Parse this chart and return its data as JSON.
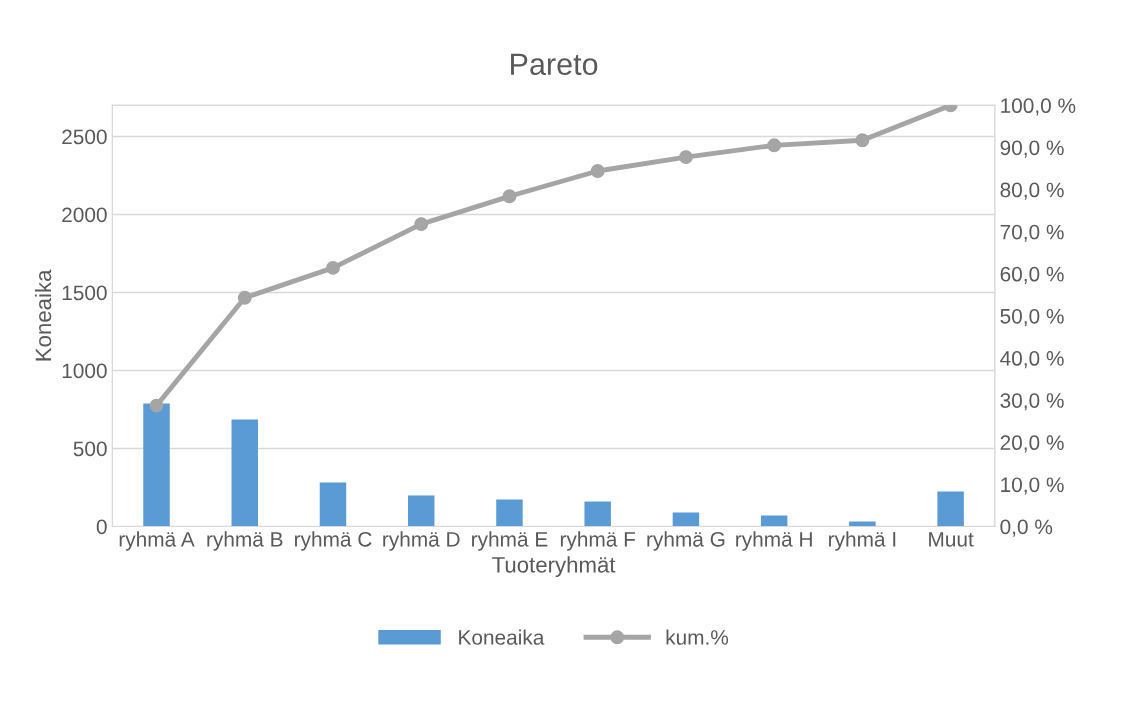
{
  "chart_data": {
    "type": "bar",
    "title": "Pareto",
    "xlabel": "Tuoteryhmät",
    "ylabel": "Koneaika",
    "categories": [
      "ryhmä A",
      "ryhmä B",
      "ryhmä C",
      "ryhmä D",
      "ryhmä E",
      "ryhmä F",
      "ryhmä G",
      "ryhmä H",
      "ryhmä I",
      "Muut"
    ],
    "series": [
      {
        "name": "Koneaika",
        "color": "#5b9bd5",
        "values": [
          788,
          686,
          282,
          199,
          173,
          160,
          90,
          70,
          32,
          224
        ]
      },
      {
        "name": "kum.%",
        "type": "line",
        "axis": "y2",
        "color": "#a5a5a5",
        "marker": "circle",
        "values": [
          28.7,
          54.3,
          61.4,
          71.8,
          78.4,
          84.4,
          87.7,
          90.5,
          91.7,
          100
        ]
      }
    ],
    "ylim": [
      0,
      2700
    ],
    "yticks": [
      0,
      500,
      1000,
      1500,
      2000,
      2500
    ],
    "y2lim": [
      0,
      100
    ],
    "y2ticks": [
      {
        "value": 0,
        "label": "0,0 %"
      },
      {
        "value": 10,
        "label": "10,0 %"
      },
      {
        "value": 20,
        "label": "20,0 %"
      },
      {
        "value": 30,
        "label": "30,0 %"
      },
      {
        "value": 40,
        "label": "40,0 %"
      },
      {
        "value": 50,
        "label": "50,0 %"
      },
      {
        "value": 60,
        "label": "60,0 %"
      },
      {
        "value": 70,
        "label": "70,0 %"
      },
      {
        "value": 80,
        "label": "80,0 %"
      },
      {
        "value": 90,
        "label": "90,0 %"
      },
      {
        "value": 100,
        "label": "100,0 %"
      }
    ],
    "grid": "y",
    "legend": "bottom"
  }
}
